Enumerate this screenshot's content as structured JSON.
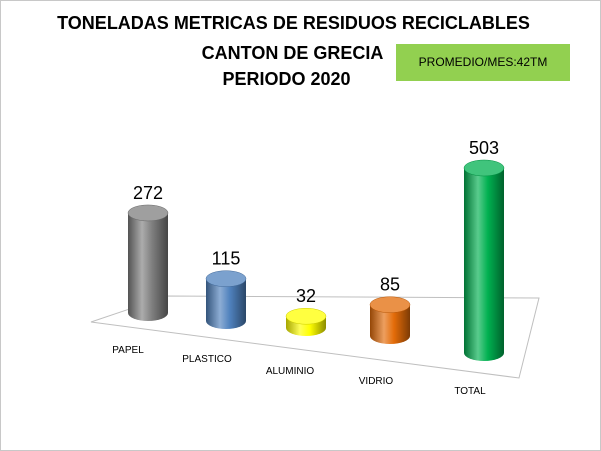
{
  "chart_data": {
    "type": "bar",
    "title_lines": [
      "TONELADAS METRICAS DE RESIDUOS RECICLABLES",
      "CANTON DE GRECIA",
      "PERIODO 2020"
    ],
    "annotation": "PROMEDIO/MES:42TM",
    "categories": [
      "PAPEL",
      "PLASTICO",
      "ALUMINIO",
      "VIDRIO",
      "TOTAL"
    ],
    "values": [
      272,
      115,
      32,
      85,
      503
    ],
    "value_labels": [
      "272",
      "115",
      "32",
      "85",
      "503"
    ],
    "colors": [
      "#7f7f7f",
      "#4f81bd",
      "#ffff00",
      "#e36c09",
      "#00b050"
    ],
    "ylim": [
      0,
      503
    ],
    "grid": false,
    "legend": "none",
    "style": "3d-cylinder"
  },
  "colors": {
    "annotation_bg": "#92d050"
  }
}
